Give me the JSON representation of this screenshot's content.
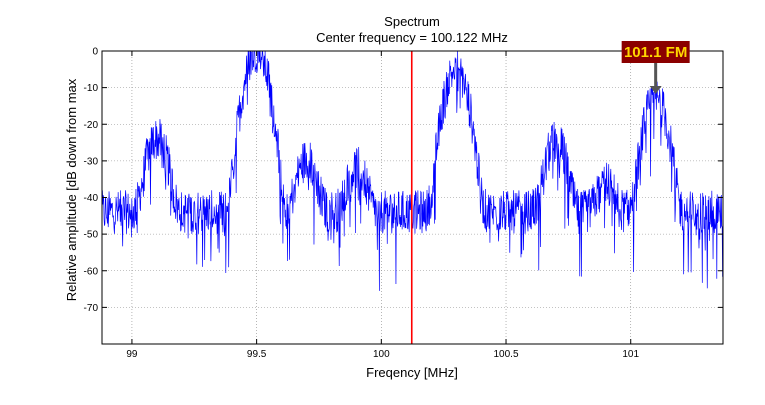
{
  "chart_data": {
    "type": "line",
    "title": "Spectrum",
    "subtitle": "Center frequency = 100.122 MHz",
    "xlabel": "Freqency [MHz]",
    "ylabel": "Relative amplitude [dB down from max",
    "xlim": [
      98.88,
      101.37
    ],
    "ylim": [
      -80,
      0
    ],
    "xticks": [
      99,
      99.5,
      100,
      100.5,
      101
    ],
    "xtick_labels": [
      "99",
      "99.5",
      "100",
      "100.5",
      "101"
    ],
    "yticks": [
      0,
      -10,
      -20,
      -30,
      -40,
      -50,
      -60,
      -70
    ],
    "ytick_labels": [
      "0",
      "-10",
      "-20",
      "-30",
      "-40",
      "-50",
      "-60",
      "-70"
    ],
    "grid": true,
    "series": [
      {
        "color": "#0000ff",
        "noise_floor_db": -44,
        "peaks": [
          {
            "freq": 99.1,
            "db": -24
          },
          {
            "freq": 99.5,
            "db": 0
          },
          {
            "freq": 99.7,
            "db": -30
          },
          {
            "freq": 99.9,
            "db": -32
          },
          {
            "freq": 100.3,
            "db": -5
          },
          {
            "freq": 100.7,
            "db": -25
          },
          {
            "freq": 100.9,
            "db": -37
          },
          {
            "freq": 101.1,
            "db": -13
          }
        ]
      }
    ],
    "center_line": {
      "freq": 100.122,
      "color": "#ff0000"
    },
    "annotations": [
      {
        "text": "101.1 FM",
        "freq": 101.1,
        "db": -12,
        "bg": "#8b0000",
        "color": "#ffd700"
      }
    ]
  }
}
